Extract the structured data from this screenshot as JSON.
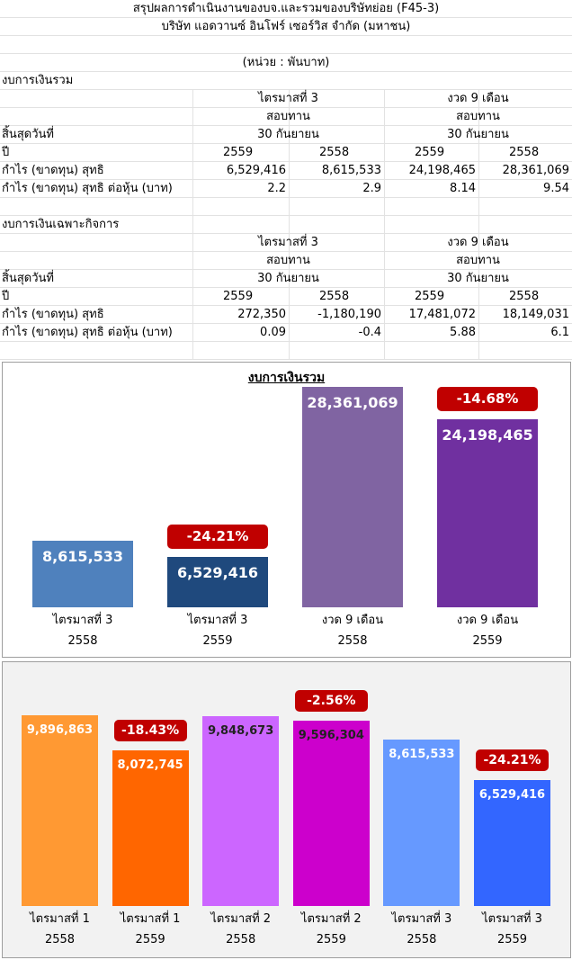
{
  "sheet": {
    "title": "สรุปผลการดำเนินงานของบจ.และรวมของบริษัทย่อย (F45-3)",
    "company": "บริษัท แอดวานซ์ อินโฟร์ เซอร์วิส จำกัด (มหาชน)",
    "unit": "(หน่วย : พันบาท)",
    "consolidated": {
      "heading": "งบการเงินรวม",
      "period_q": "ไตรมาสที่ 3",
      "period_9m": "งวด 9 เดือน",
      "reviewed": "สอบทาน",
      "end_label": "สิ้นสุดวันที่",
      "end_date": "30 กันยายน",
      "year_label": "ปี",
      "years": [
        "2559",
        "2558",
        "2559",
        "2558"
      ],
      "profit_label": "กำไร (ขาดทุน) สุทธิ",
      "profit": [
        "6,529,416",
        "8,615,533",
        "24,198,465",
        "28,361,069"
      ],
      "eps_label": "กำไร (ขาดทุน) สุทธิ ต่อหุ้น (บาท)",
      "eps": [
        "2.2",
        "2.9",
        "8.14",
        "9.54"
      ]
    },
    "separate": {
      "heading": "งบการเงินเฉพาะกิจการ",
      "period_q": "ไตรมาสที่ 3",
      "period_9m": "งวด 9 เดือน",
      "reviewed": "สอบทาน",
      "end_label": "สิ้นสุดวันที่",
      "end_date": "30 กันยายน",
      "year_label": "ปี",
      "years": [
        "2559",
        "2558",
        "2559",
        "2558"
      ],
      "profit_label": "กำไร (ขาดทุน) สุทธิ",
      "profit": [
        "272,350",
        "-1,180,190",
        "17,481,072",
        "18,149,031"
      ],
      "eps_label": "กำไร (ขาดทุน) สุทธิ ต่อหุ้น (บาท)",
      "eps": [
        "0.09",
        "-0.4",
        "5.88",
        "6.1"
      ]
    }
  },
  "chart_data": [
    {
      "type": "bar",
      "title": "งบการเงินรวม",
      "categories": [
        [
          "ไตรมาสที่ 3",
          "2558"
        ],
        [
          "ไตรมาสที่ 3",
          "2559"
        ],
        [
          "งวด 9 เดือน",
          "2558"
        ],
        [
          "งวด 9 เดือน",
          "2559"
        ]
      ],
      "values": [
        8615533,
        6529416,
        28361069,
        24198465
      ],
      "value_labels": [
        "8,615,533",
        "6,529,416",
        "28,361,069",
        "24,198,465"
      ],
      "colors": [
        "#4f81bd",
        "#1f497d",
        "#8064a2",
        "#7030a0"
      ],
      "change_badges": [
        null,
        "-24.21%",
        null,
        "-14.68%"
      ],
      "ylim": [
        0,
        28361069
      ]
    },
    {
      "type": "bar",
      "title": "",
      "categories": [
        [
          "ไตรมาสที่ 1",
          "2558"
        ],
        [
          "ไตรมาสที่ 1",
          "2559"
        ],
        [
          "ไตรมาสที่ 2",
          "2558"
        ],
        [
          "ไตรมาสที่ 2",
          "2559"
        ],
        [
          "ไตรมาสที่ 3",
          "2558"
        ],
        [
          "ไตรมาสที่ 3",
          "2559"
        ]
      ],
      "values": [
        9896863,
        8072745,
        9848673,
        9596304,
        8615533,
        6529416
      ],
      "value_labels": [
        "9,896,863",
        "8,072,745",
        "9,848,673",
        "9,596,304",
        "8,615,533",
        "6,529,416"
      ],
      "colors": [
        "#ff9933",
        "#ff6600",
        "#cc66ff",
        "#cc00cc",
        "#6699ff",
        "#3366ff"
      ],
      "change_badges": [
        null,
        "-18.43%",
        null,
        "-2.56%",
        null,
        "-24.21%"
      ],
      "ylim": [
        0,
        9896863
      ]
    }
  ]
}
